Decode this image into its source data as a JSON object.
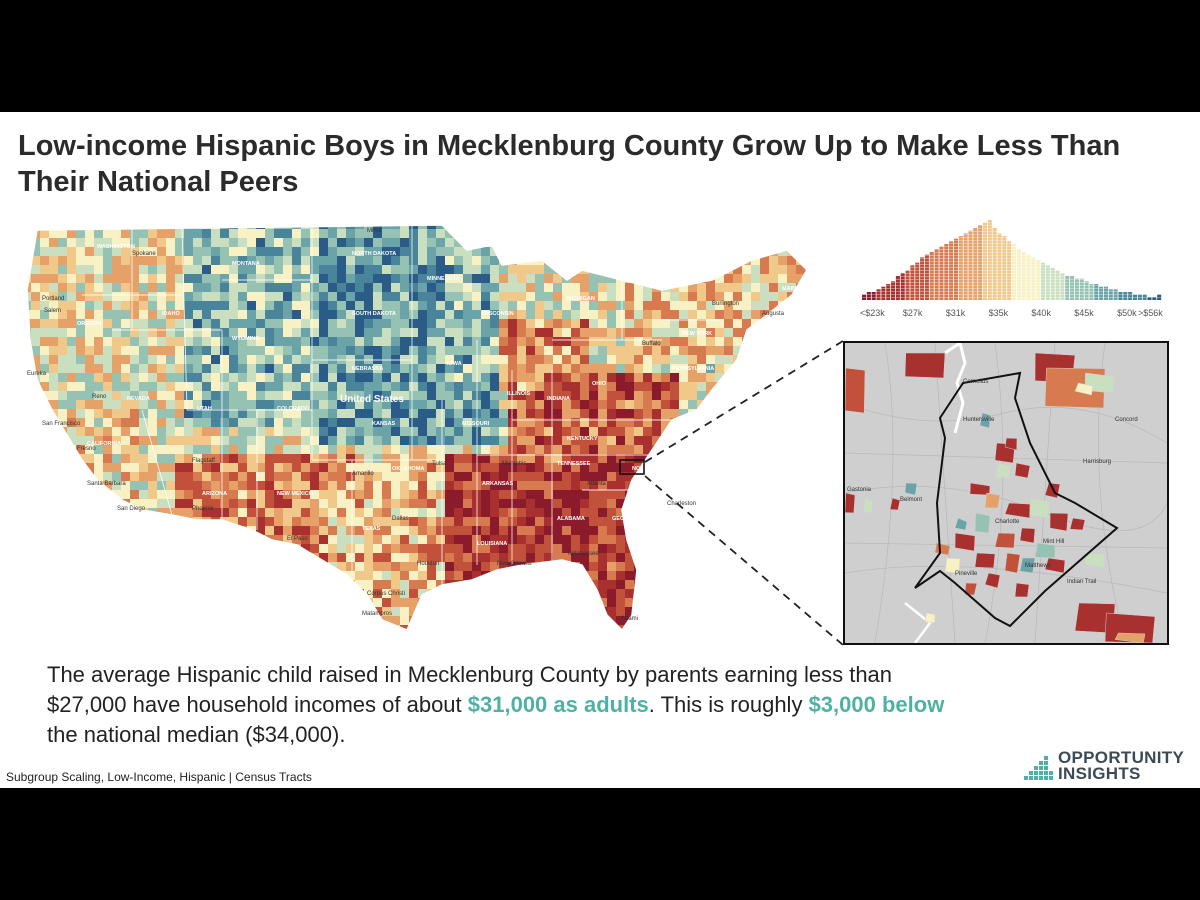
{
  "slide": {
    "title": "Low-income Hispanic Boys in Mecklenburg County Grow Up to Make Less Than Their National Peers",
    "body": {
      "part1": "The average Hispanic child raised in Mecklenburg County by parents earning less than $27,000 have household incomes of about ",
      "highlight1": "$31,000 as adults",
      "part2": ". This is roughly ",
      "highlight2": "$3,000 below",
      "part3": " the national median ($34,000)."
    },
    "footnote": "Subgroup Scaling, Low-Income, Hispanic | Census Tracts",
    "logo": {
      "line1": "OPPORTUNITY",
      "line2": "INSIGHTS"
    }
  },
  "map": {
    "center_label": "United States",
    "states": [
      {
        "name": "WASHINGTON"
      },
      {
        "name": "MONTANA"
      },
      {
        "name": "NORTH DAKOTA"
      },
      {
        "name": "SOUTH DAKOTA"
      },
      {
        "name": "MINNESOTA"
      },
      {
        "name": "WISCONSIN"
      },
      {
        "name": "MICHIGAN"
      },
      {
        "name": "OREGON"
      },
      {
        "name": "IDAHO"
      },
      {
        "name": "WYOMING"
      },
      {
        "name": "NEBRASKA"
      },
      {
        "name": "IOWA"
      },
      {
        "name": "NEVADA"
      },
      {
        "name": "UTAH"
      },
      {
        "name": "COLORADO"
      },
      {
        "name": "KANSAS"
      },
      {
        "name": "MISSOURI"
      },
      {
        "name": "ILLINOIS"
      },
      {
        "name": "INDIANA"
      },
      {
        "name": "OHIO"
      },
      {
        "name": "CALIFORNIA"
      },
      {
        "name": "ARIZONA"
      },
      {
        "name": "NEW MEXICO"
      },
      {
        "name": "OKLAHOMA"
      },
      {
        "name": "TEXAS"
      },
      {
        "name": "ARKANSAS"
      },
      {
        "name": "TENNESSEE"
      },
      {
        "name": "KENTUCKY"
      },
      {
        "name": "VIRGINIA"
      },
      {
        "name": "NORTH CAROLINA"
      },
      {
        "name": "SOUTH CAROLINA"
      },
      {
        "name": "GEORGIA"
      },
      {
        "name": "ALABAMA"
      },
      {
        "name": "LOUISIANA"
      },
      {
        "name": "NEW YORK"
      },
      {
        "name": "PENNSYLVANIA"
      },
      {
        "name": "MAINE"
      }
    ],
    "cities": [
      "Spokane",
      "Portland",
      "Salem",
      "Eureka",
      "Reno",
      "San Francisco",
      "Fresno",
      "Santa Barbara",
      "San Diego",
      "Flagstaff",
      "Phoenix",
      "Amarillo",
      "El Paso",
      "Houston",
      "Corpus Christi",
      "Matamoros",
      "New Orleans",
      "Tallahassee",
      "Atlanta",
      "Charleston",
      "Buffalo",
      "Burlington",
      "Augusta",
      "Minot",
      "Tulsa",
      "Dallas",
      "Memphis",
      "Miami"
    ]
  },
  "chart_data": {
    "type": "bar",
    "title": "",
    "xlabel": "",
    "ylabel": "",
    "tick_labels": [
      "<$23k",
      "$27k",
      "$31k",
      "$35k",
      "$40k",
      "$45k",
      "$50k",
      ">$56k"
    ],
    "values": [
      2,
      3,
      3,
      4,
      5,
      6,
      7,
      9,
      10,
      11,
      13,
      14,
      16,
      17,
      18,
      19,
      20,
      21,
      22,
      23,
      24,
      25,
      26,
      27,
      28,
      29,
      30,
      27,
      25,
      24,
      22,
      21,
      19,
      18,
      17,
      16,
      15,
      14,
      13,
      12,
      11,
      10,
      9,
      9,
      8,
      8,
      7,
      6,
      6,
      5,
      5,
      4,
      4,
      3,
      3,
      3,
      2,
      2,
      2,
      1,
      1,
      2
    ],
    "colors": {
      "low": "#8b1a2b",
      "mid": "#f7f1c4",
      "high": "#2b5c88"
    }
  },
  "inset": {
    "cities": [
      "Cornelius",
      "Huntersville",
      "Concord",
      "Harrisburg",
      "Belmont",
      "Charlotte",
      "Gastonia",
      "Matthews",
      "Indian Trail",
      "Mint Hill",
      "Pineville"
    ]
  }
}
